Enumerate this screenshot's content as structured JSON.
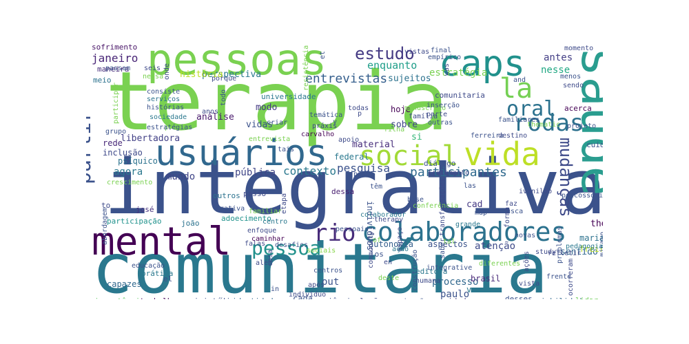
{
  "chart_data": {
    "type": "wordcloud",
    "title": "",
    "background": "#ffffff",
    "colormap": "viridis",
    "words": [
      {
        "text": "terapia",
        "weight": 100,
        "color": "#7ad151"
      },
      {
        "text": "integrativa",
        "weight": 98,
        "color": "#3b528b"
      },
      {
        "text": "comunitária",
        "weight": 96,
        "color": "#2a788e"
      },
      {
        "text": "pessoas",
        "weight": 72,
        "color": "#7ad151"
      },
      {
        "text": "saúde",
        "weight": 70,
        "color": "#2a9d8f"
      },
      {
        "text": "mental",
        "weight": 62,
        "color": "#440154"
      },
      {
        "text": "usuários",
        "weight": 56,
        "color": "#31688e"
      },
      {
        "text": "caps",
        "weight": 54,
        "color": "#21918c"
      },
      {
        "text": "vida",
        "weight": 52,
        "color": "#bddf26"
      },
      {
        "text": "social",
        "weight": 48,
        "color": "#a2da37"
      },
      {
        "text": "colaboradores",
        "weight": 44,
        "color": "#2c728e"
      },
      {
        "text": "la",
        "weight": 42,
        "color": "#75d054"
      },
      {
        "text": "rodas",
        "weight": 38,
        "color": "#2d718e"
      },
      {
        "text": "rio",
        "weight": 38,
        "color": "#472c7a"
      },
      {
        "text": "partir",
        "weight": 36,
        "color": "#3b528b"
      },
      {
        "text": "oral",
        "weight": 34,
        "color": "#2c728e"
      },
      {
        "text": "pessoa",
        "weight": 32,
        "color": "#21918c"
      },
      {
        "text": "mudanças",
        "weight": 30,
        "color": "#3e4a89"
      },
      {
        "text": "estudo",
        "weight": 30,
        "color": "#443a83"
      },
      {
        "text": "entrevistas",
        "weight": 24,
        "color": "#355f8d"
      },
      {
        "text": "participantes",
        "weight": 24,
        "color": "#306a8e"
      },
      {
        "text": "pesquisa",
        "weight": 22,
        "color": "#3b528b"
      },
      {
        "text": "contexto",
        "weight": 22,
        "color": "#2a788e"
      },
      {
        "text": "janeiro",
        "weight": 20,
        "color": "#482576"
      },
      {
        "text": "enquanto",
        "weight": 20,
        "color": "#1f9e89"
      },
      {
        "text": "antes",
        "weight": 19,
        "color": "#433e85"
      },
      {
        "text": "nesse",
        "weight": 19,
        "color": "#22a884"
      },
      {
        "text": "estratégia",
        "weight": 18,
        "color": "#7ad151"
      },
      {
        "text": "agora",
        "weight": 18,
        "color": "#2a788e"
      },
      {
        "text": "mundo",
        "weight": 18,
        "color": "#404688"
      },
      {
        "text": "pública",
        "weight": 18,
        "color": "#404688"
      },
      {
        "text": "paulo",
        "weight": 18,
        "color": "#3b528b"
      },
      {
        "text": "processo",
        "weight": 18,
        "color": "#31688e"
      },
      {
        "text": "atenção",
        "weight": 18,
        "color": "#3e4989"
      },
      {
        "text": "material",
        "weight": 16,
        "color": "#472d7b"
      },
      {
        "text": "perspectiva",
        "weight": 16,
        "color": "#2a788e"
      },
      {
        "text": "sujeitos",
        "weight": 16,
        "color": "#2c728e"
      },
      {
        "text": "história",
        "weight": 16,
        "color": "#bddf26"
      },
      {
        "text": "modo",
        "weight": 16,
        "color": "#443983"
      },
      {
        "text": "vidas",
        "weight": 16,
        "color": "#3b528b"
      },
      {
        "text": "sobre",
        "weight": 16,
        "color": "#404688"
      },
      {
        "text": "análise",
        "weight": 16,
        "color": "#481a6c"
      },
      {
        "text": "libertadora",
        "weight": 16,
        "color": "#424086"
      },
      {
        "text": "si",
        "weight": 16,
        "color": "#35b779"
      },
      {
        "text": "cad",
        "weight": 16,
        "color": "#443983"
      },
      {
        "text": "the",
        "weight": 16,
        "color": "#440154"
      },
      {
        "text": "sentido",
        "weight": 16,
        "color": "#31688e"
      },
      {
        "text": "maria",
        "weight": 14,
        "color": "#2c728e"
      },
      {
        "text": "freire",
        "weight": 14,
        "color": "#bddf26"
      },
      {
        "text": "autonomia",
        "weight": 14,
        "color": "#355f8d"
      },
      {
        "text": "out",
        "weight": 14,
        "color": "#3b528b"
      },
      {
        "text": "brasil",
        "weight": 14,
        "color": "#482878"
      },
      {
        "text": "vez",
        "weight": 14,
        "color": "#2a788e"
      },
      {
        "text": "inclusão",
        "weight": 14,
        "color": "#3e4989"
      },
      {
        "text": "psíquico",
        "weight": 14,
        "color": "#2c728e"
      },
      {
        "text": "rede",
        "weight": 14,
        "color": "#482878"
      },
      {
        "text": "capazes",
        "weight": 14,
        "color": "#31688e"
      },
      {
        "text": "cada",
        "weight": 14,
        "color": "#3b528b"
      },
      {
        "text": "hoje",
        "weight": 13,
        "color": "#440154"
      },
      {
        "text": "federal",
        "weight": 13,
        "color": "#2a788e"
      },
      {
        "text": "sofrimento",
        "weight": 13,
        "color": "#481467"
      },
      {
        "text": "maneira",
        "weight": 13,
        "color": "#472d7b"
      },
      {
        "text": "meio",
        "weight": 13,
        "color": "#2c728e"
      },
      {
        "text": "universidade",
        "weight": 12,
        "color": "#2a788e"
      },
      {
        "text": "comunitaria",
        "weight": 12,
        "color": "#3e4a89"
      },
      {
        "text": "acerca",
        "weight": 12,
        "color": "#440154"
      },
      {
        "text": "cuidado",
        "weight": 12,
        "color": "#3b528b"
      },
      {
        "text": "diálogo",
        "weight": 12,
        "color": "#3b528b"
      },
      {
        "text": "dessa",
        "weight": 12,
        "color": "#481f70"
      },
      {
        "text": "adoecimento",
        "weight": 12,
        "color": "#20928c"
      },
      {
        "text": "participação",
        "weight": 12,
        "color": "#20928c"
      },
      {
        "text": "prática",
        "weight": 12,
        "color": "#2a788e"
      },
      {
        "text": "trabalho",
        "weight": 12,
        "color": "#440154"
      },
      {
        "text": "importância",
        "weight": 12,
        "color": "#5ec962"
      },
      {
        "text": "ministério",
        "weight": 12,
        "color": "#3b528b"
      },
      {
        "text": "identidade",
        "weight": 12,
        "color": "#31688e"
      },
      {
        "text": "experiências",
        "weight": 12,
        "color": "#3b528b"
      },
      {
        "text": "relações",
        "weight": 12,
        "color": "#3e4a89"
      },
      {
        "text": "comunidade",
        "weight": 12,
        "color": "#424086"
      },
      {
        "text": "desses",
        "weight": 12,
        "color": "#3b528b"
      },
      {
        "text": "sociabilidade",
        "weight": 12,
        "color": "#31688e"
      },
      {
        "text": "lidar",
        "weight": 12,
        "color": "#6ece58"
      },
      {
        "text": "editora",
        "weight": 12,
        "color": "#2a788e"
      },
      {
        "text": "outros",
        "weight": 11,
        "color": "#2c728e"
      },
      {
        "text": "passo",
        "weight": 11,
        "color": "#3e4a89"
      },
      {
        "text": "josé",
        "weight": 11,
        "color": "#46327e"
      },
      {
        "text": "joão",
        "weight": 11,
        "color": "#2c728e"
      },
      {
        "text": "paraíba",
        "weight": 11,
        "color": "#3b528b"
      },
      {
        "text": "el",
        "weight": 11,
        "color": "#3b528b"
      },
      {
        "text": "to",
        "weight": 11,
        "color": "#3e4a89"
      },
      {
        "text": "serviços",
        "weight": 11,
        "color": "#2c728e"
      },
      {
        "text": "histórias",
        "weight": 11,
        "color": "#3b528b"
      },
      {
        "text": "sociedade",
        "weight": 11,
        "color": "#2a788e"
      },
      {
        "text": "falas",
        "weight": 11,
        "color": "#3e4a89"
      },
      {
        "text": "desafios",
        "weight": 11,
        "color": "#3b528b"
      },
      {
        "text": "sociais",
        "weight": 11,
        "color": "#86d549"
      },
      {
        "text": "casa",
        "weight": 10,
        "color": "#3e4a89"
      },
      {
        "text": "indivíduos",
        "weight": 11,
        "color": "#3b528b"
      },
      {
        "text": "espaço",
        "weight": 10,
        "color": "#3e4a89"
      },
      {
        "text": "aspectos",
        "weight": 11,
        "color": "#3b528b"
      },
      {
        "text": "base",
        "weight": 10,
        "color": "#3b528b"
      },
      {
        "text": "conferência",
        "weight": 10,
        "color": "#7ad151"
      },
      {
        "text": "las",
        "weight": 10,
        "color": "#3b528b"
      },
      {
        "text": "faz",
        "weight": 10,
        "color": "#3e4a89"
      },
      {
        "text": "busca",
        "weight": 10,
        "color": "#3b528b"
      },
      {
        "text": "ivanildo",
        "weight": 10,
        "color": "#3e4a89"
      },
      {
        "text": "psicossocial",
        "weight": 10,
        "color": "#3b528b"
      },
      {
        "text": "tratamento",
        "weight": 10,
        "color": "#3e4a89"
      },
      {
        "text": "ferreira",
        "weight": 10,
        "color": "#3b528b"
      },
      {
        "text": "destino",
        "weight": 10,
        "color": "#3e4a89"
      },
      {
        "text": "projeto",
        "weight": 10,
        "color": "#3b528b"
      },
      {
        "text": "carvalho",
        "weight": 10,
        "color": "#440154"
      },
      {
        "text": "entrevista",
        "weight": 10,
        "color": "#7ad151"
      },
      {
        "text": "criar",
        "weight": 10,
        "color": "#3b528b"
      },
      {
        "text": "práxis",
        "weight": 10,
        "color": "#3e4a89"
      },
      {
        "text": "temática",
        "weight": 10,
        "color": "#3b528b"
      },
      {
        "text": "apoio",
        "weight": 10,
        "color": "#3e4a89"
      },
      {
        "text": "tais",
        "weight": 10,
        "color": "#3b528b"
      },
      {
        "text": "colaborador",
        "weight": 10,
        "color": "#2a788e"
      },
      {
        "text": "pessoais",
        "weight": 10,
        "color": "#3b528b"
      },
      {
        "text": "therapy",
        "weight": 10,
        "color": "#3e4a89"
      },
      {
        "text": "of",
        "weight": 10,
        "color": "#7ad151"
      },
      {
        "text": "têm",
        "weight": 10,
        "color": "#3b528b"
      },
      {
        "text": "enfoque",
        "weight": 10,
        "color": "#3e4a89"
      },
      {
        "text": "caminhar",
        "weight": 10,
        "color": "#440154"
      },
      {
        "text": "centro",
        "weight": 10,
        "color": "#2a788e"
      },
      {
        "text": "los",
        "weight": 11,
        "color": "#3b528b"
      },
      {
        "text": "en",
        "weight": 10,
        "color": "#3e4a89"
      },
      {
        "text": "saber",
        "weight": 10,
        "color": "#3b528b"
      },
      {
        "text": "ação",
        "weight": 10,
        "color": "#2a788e"
      },
      {
        "text": "deste",
        "weight": 10,
        "color": "#7ad151"
      },
      {
        "text": "integrative",
        "weight": 10,
        "color": "#3b528b"
      },
      {
        "text": "humana",
        "weight": 10,
        "color": "#3e4a89"
      },
      {
        "text": "centros",
        "weight": 10,
        "color": "#3b528b"
      },
      {
        "text": "após",
        "weight": 10,
        "color": "#3e4a89"
      },
      {
        "text": "in",
        "weight": 10,
        "color": "#3b528b"
      },
      {
        "text": "indivíduo",
        "weight": 10,
        "color": "#3e4a89"
      },
      {
        "text": "comunicação",
        "weight": 10,
        "color": "#3b528b"
      },
      {
        "text": "refletir",
        "weight": 10,
        "color": "#3e4a89"
      },
      {
        "text": "frente",
        "weight": 10,
        "color": "#3b528b"
      },
      {
        "text": "ações",
        "weight": 10,
        "color": "#3e4a89"
      },
      {
        "text": "maior",
        "weight": 10,
        "color": "#3b528b"
      },
      {
        "text": "study",
        "weight": 10,
        "color": "#3e4a89"
      },
      {
        "text": "problemas",
        "weight": 10,
        "color": "#3b528b"
      },
      {
        "text": "ocorreram",
        "weight": 10,
        "color": "#3e4a89"
      },
      {
        "text": "minayo",
        "weight": 10,
        "color": "#3b528b"
      },
      {
        "text": "pedagogia",
        "weight": 10,
        "color": "#2a788e"
      },
      {
        "text": "educação",
        "weight": 10,
        "color": "#3b528b"
      },
      {
        "text": "além",
        "weight": 10,
        "color": "#3e4a89"
      },
      {
        "text": "construção",
        "weight": 10,
        "color": "#3b528b"
      },
      {
        "text": "community",
        "weight": 10,
        "color": "#3e4a89"
      },
      {
        "text": "diferentes",
        "weight": 10,
        "color": "#7ad151"
      },
      {
        "text": "novas",
        "weight": 10,
        "color": "#3b528b"
      },
      {
        "text": "transformações",
        "weight": 10,
        "color": "#3e4a89"
      },
      {
        "text": "grande",
        "weight": 10,
        "color": "#2a788e"
      },
      {
        "text": "map",
        "weight": 10,
        "color": "#3b528b"
      },
      {
        "text": "forma",
        "weight": 10,
        "color": "#3e4a89"
      },
      {
        "text": "abordagem",
        "weight": 10,
        "color": "#3b528b"
      },
      {
        "text": "crescimento",
        "weight": 10,
        "color": "#7ad151"
      },
      {
        "text": "grativa",
        "weight": 10,
        "color": "#3b528b"
      },
      {
        "text": "familiar",
        "weight": 10,
        "color": "#7ad151"
      },
      {
        "text": "etapa",
        "weight": 10,
        "color": "#3e4a89"
      },
      {
        "text": "passa",
        "weight": 10,
        "color": "#3b528b"
      },
      {
        "text": "momento",
        "weight": 10,
        "color": "#3e4a89"
      },
      {
        "text": "final",
        "weight": 10,
        "color": "#3b528b"
      },
      {
        "text": "vistas",
        "weight": 10,
        "color": "#3e4a89"
      },
      {
        "text": "empírico",
        "weight": 10,
        "color": "#3b528b"
      },
      {
        "text": "manuscrito",
        "weight": 10,
        "color": "#7ad151"
      },
      {
        "text": "família",
        "weight": 10,
        "color": "#3e4a89"
      },
      {
        "text": "inserção",
        "weight": 10,
        "color": "#3b528b"
      },
      {
        "text": "parte",
        "weight": 10,
        "color": "#3e4a89"
      },
      {
        "text": "outras",
        "weight": 10,
        "color": "#3b528b"
      },
      {
        "text": "todas",
        "weight": 10,
        "color": "#3e4a89"
      },
      {
        "text": "filha",
        "weight": 10,
        "color": "#7ad151"
      },
      {
        "text": "familiares",
        "weight": 10,
        "color": "#3b528b"
      },
      {
        "text": "thematic",
        "weight": 10,
        "color": "#7ad151"
      },
      {
        "text": "menos",
        "weight": 10,
        "color": "#3b528b"
      },
      {
        "text": "sendo",
        "weight": 10,
        "color": "#3e4a89"
      },
      {
        "text": "and",
        "weight": 10,
        "color": "#3b528b"
      },
      {
        "text": "was",
        "weight": 10,
        "color": "#3e4a89"
      },
      {
        "text": "et",
        "weight": 10,
        "color": "#3b528b"
      },
      {
        "text": "onde",
        "weight": 10,
        "color": "#3e4a89"
      },
      {
        "text": "passam",
        "weight": 10,
        "color": "#3b528b"
      },
      {
        "text": "seis",
        "weight": 10,
        "color": "#3e4a89"
      },
      {
        "text": "nessa",
        "weight": 10,
        "color": "#7ad151"
      },
      {
        "text": "consiste",
        "weight": 10,
        "color": "#3b528b"
      },
      {
        "text": "participar",
        "weight": 10,
        "color": "#7ad151"
      },
      {
        "text": "grupo",
        "weight": 10,
        "color": "#3b528b"
      },
      {
        "text": "pra",
        "weight": 10,
        "color": "#7ad151"
      },
      {
        "text": "anos",
        "weight": 10,
        "color": "#3e4a89"
      },
      {
        "text": "todo",
        "weight": 10,
        "color": "#3b528b"
      },
      {
        "text": "porque",
        "weight": 10,
        "color": "#3e4a89"
      },
      {
        "text": "resistência",
        "weight": 10,
        "color": "#7ad151"
      },
      {
        "text": "y",
        "weight": 10,
        "color": "#3b528b"
      },
      {
        "text": "p",
        "weight": 10,
        "color": "#3e4a89"
      },
      {
        "text": "tal",
        "weight": 10,
        "color": "#7ad151"
      },
      {
        "text": "estratégias",
        "weight": 10,
        "color": "#3b528b"
      },
      {
        "text": "vista",
        "weight": 10,
        "color": "#3e4a89"
      }
    ]
  }
}
